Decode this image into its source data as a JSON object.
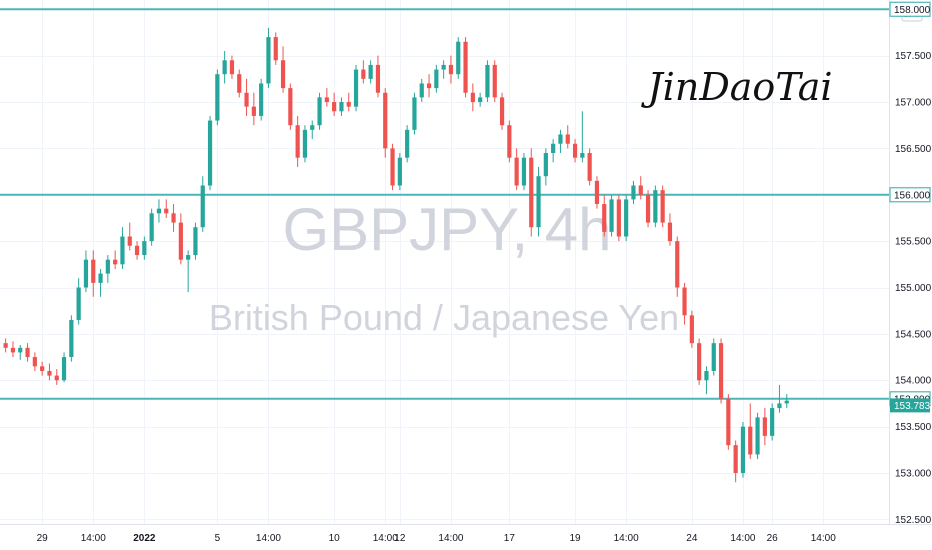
{
  "chart_data": {
    "type": "candlestick",
    "watermark_symbol": "GBPJPY, 4h",
    "watermark_description": "British Pound / Japanese Yen",
    "signature": "JinDaoTai",
    "currency": "JPY",
    "ylim": [
      152.45,
      158.1
    ],
    "y_ticks": [
      "152.500",
      "153.000",
      "153.500",
      "154.000",
      "154.500",
      "155.000",
      "155.500",
      "156.000",
      "156.500",
      "157.000",
      "157.500",
      "158.000"
    ],
    "x_labels": [
      {
        "label": "29",
        "i": 5,
        "bold": false
      },
      {
        "label": "14:00",
        "i": 12,
        "bold": false
      },
      {
        "label": "2022",
        "i": 19,
        "bold": true
      },
      {
        "label": "5",
        "i": 29,
        "bold": false
      },
      {
        "label": "14:00",
        "i": 36,
        "bold": false
      },
      {
        "label": "10",
        "i": 45,
        "bold": false
      },
      {
        "label": "14:00",
        "i": 52,
        "bold": false
      },
      {
        "label": "12",
        "i": 54,
        "bold": false
      },
      {
        "label": "14:00",
        "i": 61,
        "bold": false
      },
      {
        "label": "17",
        "i": 69,
        "bold": false
      },
      {
        "label": "19",
        "i": 78,
        "bold": false
      },
      {
        "label": "14:00",
        "i": 85,
        "bold": false
      },
      {
        "label": "24",
        "i": 94,
        "bold": false
      },
      {
        "label": "14:00",
        "i": 101,
        "bold": false
      },
      {
        "label": "26",
        "i": 105,
        "bold": false
      },
      {
        "label": "14:00",
        "i": 112,
        "bold": false
      }
    ],
    "horizontal_lines": [
      158.0,
      156.0,
      153.8
    ],
    "price_tags": [
      "158.000",
      "156.000",
      "153.800"
    ],
    "current_price": {
      "label": "153.783",
      "value": 153.783
    },
    "colors": {
      "up": "#26a69a",
      "down": "#ef5350",
      "line": "#4db6b8",
      "grid": "#f0f3fa"
    },
    "candles": [
      [
        154.4,
        154.45,
        154.3,
        154.35
      ],
      [
        154.35,
        154.42,
        154.25,
        154.3
      ],
      [
        154.3,
        154.38,
        154.22,
        154.35
      ],
      [
        154.35,
        154.4,
        154.2,
        154.25
      ],
      [
        154.25,
        154.3,
        154.1,
        154.15
      ],
      [
        154.15,
        154.2,
        154.05,
        154.1
      ],
      [
        154.1,
        154.18,
        154.0,
        154.05
      ],
      [
        154.05,
        154.12,
        153.95,
        154.0
      ],
      [
        154.0,
        154.3,
        153.98,
        154.25
      ],
      [
        154.25,
        154.7,
        154.2,
        154.65
      ],
      [
        154.65,
        155.1,
        154.6,
        155.0
      ],
      [
        155.0,
        155.4,
        154.95,
        155.3
      ],
      [
        155.3,
        155.4,
        154.9,
        155.05
      ],
      [
        155.05,
        155.2,
        154.9,
        155.15
      ],
      [
        155.15,
        155.35,
        155.05,
        155.3
      ],
      [
        155.3,
        155.4,
        155.2,
        155.25
      ],
      [
        155.25,
        155.65,
        155.2,
        155.55
      ],
      [
        155.55,
        155.7,
        155.4,
        155.45
      ],
      [
        155.45,
        155.5,
        155.3,
        155.35
      ],
      [
        155.35,
        155.55,
        155.3,
        155.5
      ],
      [
        155.5,
        155.85,
        155.45,
        155.8
      ],
      [
        155.8,
        155.95,
        155.7,
        155.85
      ],
      [
        155.85,
        155.95,
        155.75,
        155.8
      ],
      [
        155.8,
        155.9,
        155.6,
        155.7
      ],
      [
        155.7,
        155.8,
        155.25,
        155.3
      ],
      [
        155.3,
        155.4,
        154.95,
        155.35
      ],
      [
        155.35,
        155.7,
        155.3,
        155.65
      ],
      [
        155.65,
        156.2,
        155.6,
        156.1
      ],
      [
        156.1,
        156.85,
        156.05,
        156.8
      ],
      [
        156.8,
        157.35,
        156.75,
        157.3
      ],
      [
        157.3,
        157.55,
        157.2,
        157.45
      ],
      [
        157.45,
        157.5,
        157.25,
        157.3
      ],
      [
        157.3,
        157.35,
        157.05,
        157.1
      ],
      [
        157.1,
        157.25,
        156.85,
        156.95
      ],
      [
        156.95,
        157.1,
        156.75,
        156.85
      ],
      [
        156.85,
        157.25,
        156.8,
        157.2
      ],
      [
        157.2,
        157.8,
        157.15,
        157.7
      ],
      [
        157.7,
        157.75,
        157.4,
        157.45
      ],
      [
        157.45,
        157.6,
        157.1,
        157.15
      ],
      [
        157.15,
        157.2,
        156.7,
        156.75
      ],
      [
        156.75,
        156.85,
        156.3,
        156.4
      ],
      [
        156.4,
        156.75,
        156.35,
        156.7
      ],
      [
        156.7,
        156.8,
        156.6,
        156.75
      ],
      [
        156.75,
        157.1,
        156.7,
        157.05
      ],
      [
        157.05,
        157.15,
        156.95,
        157.0
      ],
      [
        157.0,
        157.1,
        156.85,
        156.9
      ],
      [
        156.9,
        157.05,
        156.85,
        157.0
      ],
      [
        157.0,
        157.1,
        156.9,
        156.95
      ],
      [
        156.95,
        157.4,
        156.9,
        157.35
      ],
      [
        157.35,
        157.45,
        157.2,
        157.25
      ],
      [
        157.25,
        157.45,
        157.2,
        157.4
      ],
      [
        157.4,
        157.5,
        157.05,
        157.1
      ],
      [
        157.1,
        157.15,
        156.4,
        156.5
      ],
      [
        156.5,
        156.55,
        156.05,
        156.1
      ],
      [
        156.1,
        156.45,
        156.05,
        156.4
      ],
      [
        156.4,
        156.75,
        156.35,
        156.7
      ],
      [
        156.7,
        157.1,
        156.65,
        157.05
      ],
      [
        157.05,
        157.25,
        157.0,
        157.2
      ],
      [
        157.2,
        157.3,
        157.05,
        157.15
      ],
      [
        157.15,
        157.4,
        157.1,
        157.35
      ],
      [
        157.35,
        157.45,
        157.25,
        157.4
      ],
      [
        157.4,
        157.5,
        157.2,
        157.3
      ],
      [
        157.3,
        157.7,
        157.25,
        157.65
      ],
      [
        157.65,
        157.7,
        157.05,
        157.1
      ],
      [
        157.1,
        157.2,
        156.9,
        157.0
      ],
      [
        157.0,
        157.1,
        156.95,
        157.05
      ],
      [
        157.05,
        157.45,
        157.0,
        157.4
      ],
      [
        157.4,
        157.45,
        157.0,
        157.05
      ],
      [
        157.05,
        157.1,
        156.7,
        156.75
      ],
      [
        156.75,
        156.8,
        156.35,
        156.4
      ],
      [
        156.4,
        156.5,
        156.05,
        156.1
      ],
      [
        156.1,
        156.45,
        156.05,
        156.4
      ],
      [
        156.4,
        156.5,
        155.55,
        155.65
      ],
      [
        155.65,
        156.3,
        155.55,
        156.2
      ],
      [
        156.2,
        156.5,
        156.1,
        156.45
      ],
      [
        156.45,
        156.6,
        156.35,
        156.55
      ],
      [
        156.55,
        156.7,
        156.45,
        156.65
      ],
      [
        156.65,
        156.75,
        156.5,
        156.55
      ],
      [
        156.55,
        156.6,
        156.35,
        156.4
      ],
      [
        156.4,
        156.9,
        156.35,
        156.45
      ],
      [
        156.45,
        156.5,
        156.1,
        156.15
      ],
      [
        156.15,
        156.2,
        155.85,
        155.9
      ],
      [
        155.9,
        156.0,
        155.55,
        155.6
      ],
      [
        155.6,
        156.0,
        155.55,
        155.95
      ],
      [
        155.95,
        156.0,
        155.5,
        155.55
      ],
      [
        155.55,
        156.0,
        155.5,
        155.95
      ],
      [
        155.95,
        156.15,
        155.9,
        156.1
      ],
      [
        156.1,
        156.2,
        155.95,
        156.0
      ],
      [
        156.0,
        156.05,
        155.65,
        155.7
      ],
      [
        155.7,
        156.1,
        155.65,
        156.05
      ],
      [
        156.05,
        156.1,
        155.65,
        155.7
      ],
      [
        155.7,
        155.8,
        155.45,
        155.5
      ],
      [
        155.5,
        155.55,
        154.9,
        155.0
      ],
      [
        155.0,
        155.05,
        154.6,
        154.7
      ],
      [
        154.7,
        154.75,
        154.35,
        154.4
      ],
      [
        154.4,
        154.45,
        153.95,
        154.0
      ],
      [
        154.0,
        154.15,
        153.85,
        154.1
      ],
      [
        154.1,
        154.45,
        154.05,
        154.4
      ],
      [
        154.4,
        154.45,
        153.75,
        153.8
      ],
      [
        153.8,
        153.85,
        153.25,
        153.3
      ],
      [
        153.3,
        153.35,
        152.9,
        153.0
      ],
      [
        153.0,
        153.55,
        152.95,
        153.5
      ],
      [
        153.5,
        153.75,
        153.15,
        153.2
      ],
      [
        153.2,
        153.65,
        153.15,
        153.6
      ],
      [
        153.6,
        153.7,
        153.3,
        153.4
      ],
      [
        153.4,
        153.75,
        153.35,
        153.7
      ],
      [
        153.7,
        153.95,
        153.65,
        153.75
      ],
      [
        153.75,
        153.85,
        153.7,
        153.78
      ]
    ]
  }
}
